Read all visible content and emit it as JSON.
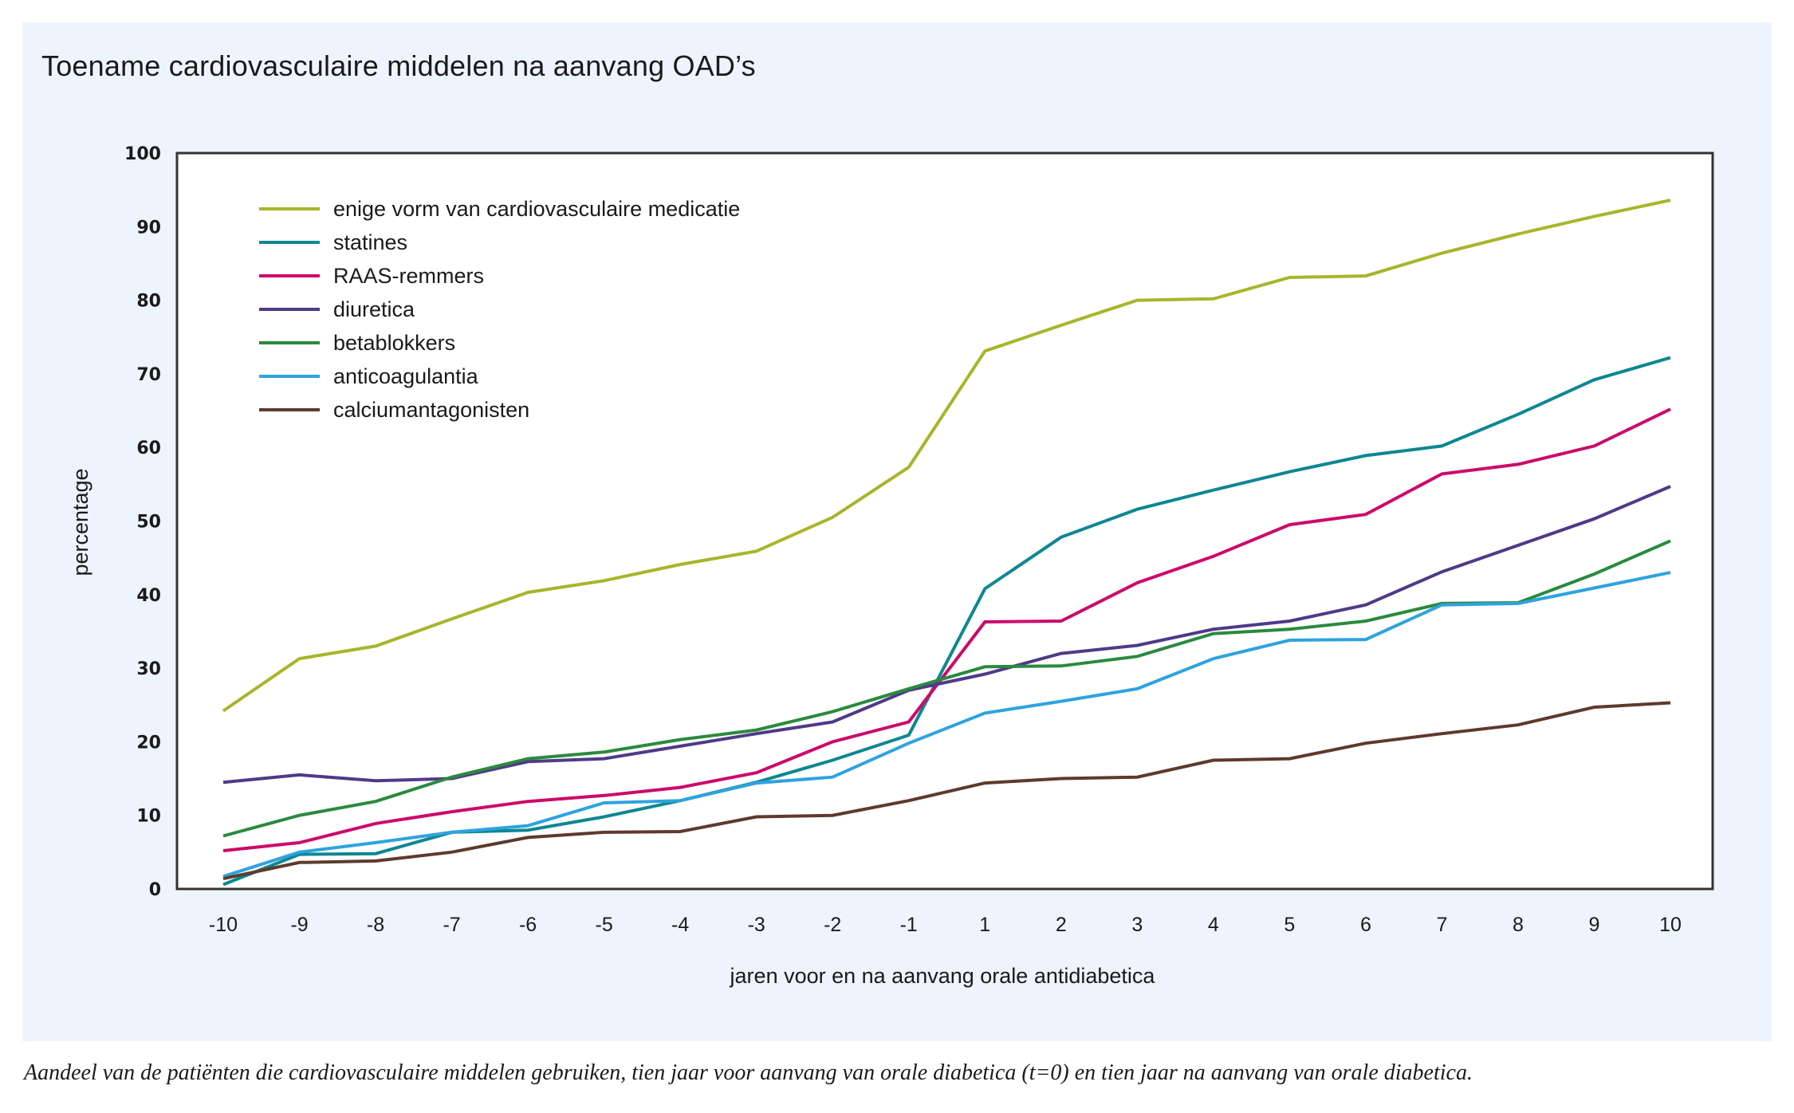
{
  "figure": {
    "title": "Toename cardiovasculaire middelen na aanvang OAD’s",
    "caption": "Aandeel van de patiënten die cardiovasculaire middelen gebruiken, tien jaar voor aanvang van orale diabetica (t=0) en tien jaar na aanvang van orale diabetica."
  },
  "chart_data": {
    "type": "line",
    "title": "Toename cardiovasculaire middelen na aanvang OAD’s",
    "xlabel": "jaren voor en na aanvang orale antidiabetica",
    "ylabel": "percentage",
    "ylim": [
      0,
      100
    ],
    "yticks": [
      0,
      10,
      20,
      30,
      40,
      50,
      60,
      70,
      80,
      90,
      100
    ],
    "x": [
      "-10",
      "-9",
      "-8",
      "-7",
      "-6",
      "-5",
      "-4",
      "-3",
      "-2",
      "-1",
      "1",
      "2",
      "3",
      "4",
      "5",
      "6",
      "7",
      "8",
      "9",
      "10"
    ],
    "grid": false,
    "legend_position": "top-left",
    "series": [
      {
        "name": "enige vorm van cardiovasculaire medicatie",
        "color": "#a8b52a",
        "values": [
          24.2,
          31.3,
          33.0,
          36.7,
          40.3,
          41.9,
          44.1,
          45.9,
          50.5,
          57.3,
          73.1,
          76.6,
          80.0,
          80.2,
          83.1,
          83.3,
          86.4,
          89.0,
          91.4,
          93.6
        ]
      },
      {
        "name": "statines",
        "color": "#0e8791",
        "values": [
          0.6,
          4.7,
          4.8,
          7.7,
          8.0,
          9.8,
          12.0,
          14.5,
          17.5,
          20.9,
          40.8,
          47.8,
          51.6,
          54.2,
          56.7,
          58.9,
          60.2,
          64.5,
          69.2,
          72.2
        ]
      },
      {
        "name": "RAAS-remmers",
        "color": "#cc0a6a",
        "values": [
          5.2,
          6.3,
          8.9,
          10.5,
          11.9,
          12.7,
          13.8,
          15.8,
          20.0,
          22.7,
          36.3,
          36.4,
          41.6,
          45.2,
          49.5,
          50.9,
          56.4,
          57.7,
          60.2,
          65.2
        ]
      },
      {
        "name": "diuretica",
        "color": "#4f3a88",
        "values": [
          14.5,
          15.5,
          14.7,
          15.0,
          17.3,
          17.7,
          19.4,
          21.1,
          22.7,
          27.0,
          29.2,
          32.0,
          33.1,
          35.3,
          36.4,
          38.6,
          43.1,
          46.7,
          50.3,
          54.7
        ]
      },
      {
        "name": "betablokkers",
        "color": "#2a8a3e",
        "values": [
          7.2,
          10.0,
          11.9,
          15.2,
          17.7,
          18.6,
          20.3,
          21.6,
          24.1,
          27.2,
          30.2,
          30.3,
          31.6,
          34.7,
          35.3,
          36.4,
          38.8,
          38.9,
          42.8,
          47.3
        ]
      },
      {
        "name": "anticoagulantia",
        "color": "#2ea3df",
        "values": [
          1.7,
          5.0,
          6.3,
          7.7,
          8.6,
          11.7,
          12.0,
          14.4,
          15.2,
          19.8,
          23.9,
          25.5,
          27.2,
          31.3,
          33.8,
          33.9,
          38.6,
          38.8,
          40.9,
          43.0
        ]
      },
      {
        "name": "calciumantagonisten",
        "color": "#5e3a2c",
        "values": [
          1.4,
          3.6,
          3.8,
          5.0,
          7.0,
          7.7,
          7.8,
          9.8,
          10.0,
          12.0,
          14.4,
          15.0,
          15.2,
          17.5,
          17.7,
          19.8,
          21.1,
          22.3,
          24.7,
          25.3
        ]
      }
    ]
  }
}
